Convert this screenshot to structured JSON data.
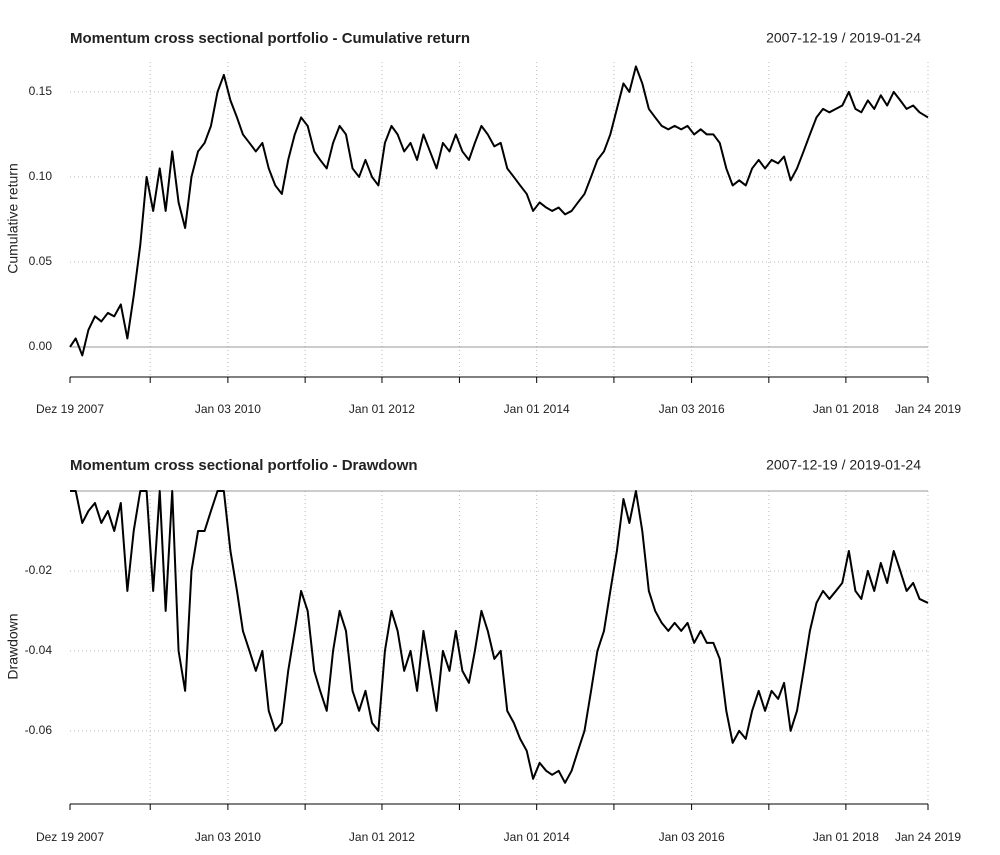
{
  "chart_data": [
    {
      "type": "line",
      "title": "Momentum cross sectional portfolio - Cumulative return",
      "date_range": "2007-12-19 / 2019-01-24",
      "ylabel": "Cumulative return",
      "color": "#000000",
      "grid": true,
      "baseline": 0,
      "x": [
        "2007-12-19",
        "2008-01-15",
        "2008-02-15",
        "2008-03-15",
        "2008-04-15",
        "2008-05-15",
        "2008-06-15",
        "2008-07-15",
        "2008-08-15",
        "2008-09-15",
        "2008-10-15",
        "2008-11-15",
        "2008-12-15",
        "2009-01-15",
        "2009-02-15",
        "2009-03-15",
        "2009-04-15",
        "2009-05-15",
        "2009-06-15",
        "2009-07-15",
        "2009-08-15",
        "2009-09-15",
        "2009-10-15",
        "2009-11-15",
        "2009-12-15",
        "2010-01-15",
        "2010-02-15",
        "2010-03-15",
        "2010-04-15",
        "2010-05-15",
        "2010-06-15",
        "2010-07-15",
        "2010-08-15",
        "2010-09-15",
        "2010-10-15",
        "2010-11-15",
        "2010-12-15",
        "2011-01-15",
        "2011-02-15",
        "2011-03-15",
        "2011-04-15",
        "2011-05-15",
        "2011-06-15",
        "2011-07-15",
        "2011-08-15",
        "2011-09-15",
        "2011-10-15",
        "2011-11-15",
        "2011-12-15",
        "2012-01-15",
        "2012-02-15",
        "2012-03-15",
        "2012-04-15",
        "2012-05-15",
        "2012-06-15",
        "2012-07-15",
        "2012-08-15",
        "2012-09-15",
        "2012-10-15",
        "2012-11-15",
        "2012-12-15",
        "2013-01-15",
        "2013-02-15",
        "2013-03-15",
        "2013-04-15",
        "2013-05-15",
        "2013-06-15",
        "2013-07-15",
        "2013-08-15",
        "2013-09-15",
        "2013-10-15",
        "2013-11-15",
        "2013-12-15",
        "2014-01-15",
        "2014-02-15",
        "2014-03-15",
        "2014-04-15",
        "2014-05-15",
        "2014-06-15",
        "2014-07-15",
        "2014-08-15",
        "2014-09-15",
        "2014-10-15",
        "2014-11-15",
        "2014-12-15",
        "2015-01-15",
        "2015-02-15",
        "2015-03-15",
        "2015-04-15",
        "2015-05-15",
        "2015-06-15",
        "2015-07-15",
        "2015-08-15",
        "2015-09-15",
        "2015-10-15",
        "2015-11-15",
        "2015-12-15",
        "2016-01-15",
        "2016-02-15",
        "2016-03-15",
        "2016-04-15",
        "2016-05-15",
        "2016-06-15",
        "2016-07-15",
        "2016-08-15",
        "2016-09-15",
        "2016-10-15",
        "2016-11-15",
        "2016-12-15",
        "2017-01-15",
        "2017-02-15",
        "2017-03-15",
        "2017-04-15",
        "2017-05-15",
        "2017-06-15",
        "2017-07-15",
        "2017-08-15",
        "2017-09-15",
        "2017-10-15",
        "2017-11-15",
        "2017-12-15",
        "2018-01-15",
        "2018-02-15",
        "2018-03-15",
        "2018-04-15",
        "2018-05-15",
        "2018-06-15",
        "2018-07-15",
        "2018-08-15",
        "2018-09-15",
        "2018-10-15",
        "2018-11-15",
        "2018-12-15",
        "2019-01-24"
      ],
      "values": [
        0.0,
        0.005,
        -0.005,
        0.01,
        0.018,
        0.015,
        0.02,
        0.018,
        0.025,
        0.005,
        0.03,
        0.06,
        0.1,
        0.08,
        0.105,
        0.08,
        0.115,
        0.085,
        0.07,
        0.1,
        0.115,
        0.12,
        0.13,
        0.15,
        0.16,
        0.145,
        0.135,
        0.125,
        0.12,
        0.115,
        0.12,
        0.105,
        0.095,
        0.09,
        0.11,
        0.125,
        0.135,
        0.13,
        0.115,
        0.11,
        0.105,
        0.12,
        0.13,
        0.125,
        0.105,
        0.1,
        0.11,
        0.1,
        0.095,
        0.12,
        0.13,
        0.125,
        0.115,
        0.12,
        0.11,
        0.125,
        0.115,
        0.105,
        0.12,
        0.115,
        0.125,
        0.115,
        0.11,
        0.12,
        0.13,
        0.125,
        0.118,
        0.12,
        0.105,
        0.1,
        0.095,
        0.09,
        0.08,
        0.085,
        0.082,
        0.08,
        0.082,
        0.078,
        0.08,
        0.085,
        0.09,
        0.1,
        0.11,
        0.115,
        0.125,
        0.14,
        0.155,
        0.15,
        0.165,
        0.155,
        0.14,
        0.135,
        0.13,
        0.128,
        0.13,
        0.128,
        0.13,
        0.125,
        0.128,
        0.125,
        0.125,
        0.12,
        0.105,
        0.095,
        0.098,
        0.095,
        0.105,
        0.11,
        0.105,
        0.11,
        0.108,
        0.112,
        0.098,
        0.105,
        0.115,
        0.125,
        0.135,
        0.14,
        0.138,
        0.14,
        0.142,
        0.15,
        0.14,
        0.138,
        0.145,
        0.14,
        0.148,
        0.142,
        0.15,
        0.145,
        0.14,
        0.142,
        0.138,
        0.135
      ],
      "xlim": [
        "2007-12-19",
        "2019-01-24"
      ],
      "xticks": [
        {
          "value": "2007-12-19",
          "label": "Dez 19 2007"
        },
        {
          "value": "2010-01-03",
          "label": "Jan 03 2010"
        },
        {
          "value": "2012-01-01",
          "label": "Jan 01 2012"
        },
        {
          "value": "2014-01-01",
          "label": "Jan 01 2014"
        },
        {
          "value": "2016-01-03",
          "label": "Jan 03 2016"
        },
        {
          "value": "2018-01-01",
          "label": "Jan 01 2018"
        },
        {
          "value": "2019-01-24",
          "label": "Jan 24 2019"
        }
      ],
      "xticks_minor": [
        "2009-01-01",
        "2011-01-03",
        "2013-01-01",
        "2015-01-01",
        "2017-01-02"
      ],
      "ylim": [
        -0.0165,
        0.1676
      ],
      "yticks": [
        {
          "value": 0,
          "label": "0.00"
        },
        0.05,
        {
          "value": 0.1,
          "label": "0.10"
        },
        0.15
      ]
    },
    {
      "type": "line",
      "title": "Momentum cross sectional portfolio - Drawdown",
      "date_range": "2007-12-19 / 2019-01-24",
      "ylabel": "Drawdown",
      "color": "#000000",
      "grid": true,
      "baseline": 0,
      "x": [
        "2007-12-19",
        "2008-01-15",
        "2008-02-15",
        "2008-03-15",
        "2008-04-15",
        "2008-05-15",
        "2008-06-15",
        "2008-07-15",
        "2008-08-15",
        "2008-09-15",
        "2008-10-15",
        "2008-11-15",
        "2008-12-15",
        "2009-01-15",
        "2009-02-15",
        "2009-03-15",
        "2009-04-15",
        "2009-05-15",
        "2009-06-15",
        "2009-07-15",
        "2009-08-15",
        "2009-09-15",
        "2009-10-15",
        "2009-11-15",
        "2009-12-15",
        "2010-01-15",
        "2010-02-15",
        "2010-03-15",
        "2010-04-15",
        "2010-05-15",
        "2010-06-15",
        "2010-07-15",
        "2010-08-15",
        "2010-09-15",
        "2010-10-15",
        "2010-11-15",
        "2010-12-15",
        "2011-01-15",
        "2011-02-15",
        "2011-03-15",
        "2011-04-15",
        "2011-05-15",
        "2011-06-15",
        "2011-07-15",
        "2011-08-15",
        "2011-09-15",
        "2011-10-15",
        "2011-11-15",
        "2011-12-15",
        "2012-01-15",
        "2012-02-15",
        "2012-03-15",
        "2012-04-15",
        "2012-05-15",
        "2012-06-15",
        "2012-07-15",
        "2012-08-15",
        "2012-09-15",
        "2012-10-15",
        "2012-11-15",
        "2012-12-15",
        "2013-01-15",
        "2013-02-15",
        "2013-03-15",
        "2013-04-15",
        "2013-05-15",
        "2013-06-15",
        "2013-07-15",
        "2013-08-15",
        "2013-09-15",
        "2013-10-15",
        "2013-11-15",
        "2013-12-15",
        "2014-01-15",
        "2014-02-15",
        "2014-03-15",
        "2014-04-15",
        "2014-05-15",
        "2014-06-15",
        "2014-07-15",
        "2014-08-15",
        "2014-09-15",
        "2014-10-15",
        "2014-11-15",
        "2014-12-15",
        "2015-01-15",
        "2015-02-15",
        "2015-03-15",
        "2015-04-15",
        "2015-05-15",
        "2015-06-15",
        "2015-07-15",
        "2015-08-15",
        "2015-09-15",
        "2015-10-15",
        "2015-11-15",
        "2015-12-15",
        "2016-01-15",
        "2016-02-15",
        "2016-03-15",
        "2016-04-15",
        "2016-05-15",
        "2016-06-15",
        "2016-07-15",
        "2016-08-15",
        "2016-09-15",
        "2016-10-15",
        "2016-11-15",
        "2016-12-15",
        "2017-01-15",
        "2017-02-15",
        "2017-03-15",
        "2017-04-15",
        "2017-05-15",
        "2017-06-15",
        "2017-07-15",
        "2017-08-15",
        "2017-09-15",
        "2017-10-15",
        "2017-11-15",
        "2017-12-15",
        "2018-01-15",
        "2018-02-15",
        "2018-03-15",
        "2018-04-15",
        "2018-05-15",
        "2018-06-15",
        "2018-07-15",
        "2018-08-15",
        "2018-09-15",
        "2018-10-15",
        "2018-11-15",
        "2018-12-15",
        "2019-01-24"
      ],
      "values": [
        0,
        0,
        -0.008,
        -0.005,
        -0.003,
        -0.008,
        -0.005,
        -0.01,
        -0.003,
        -0.025,
        -0.01,
        0,
        0,
        -0.025,
        0,
        -0.03,
        0,
        -0.04,
        -0.05,
        -0.02,
        -0.01,
        -0.01,
        -0.005,
        0,
        0,
        -0.015,
        -0.025,
        -0.035,
        -0.04,
        -0.045,
        -0.04,
        -0.055,
        -0.06,
        -0.058,
        -0.045,
        -0.035,
        -0.025,
        -0.03,
        -0.045,
        -0.05,
        -0.055,
        -0.04,
        -0.03,
        -0.035,
        -0.05,
        -0.055,
        -0.05,
        -0.058,
        -0.06,
        -0.04,
        -0.03,
        -0.035,
        -0.045,
        -0.04,
        -0.05,
        -0.035,
        -0.045,
        -0.055,
        -0.04,
        -0.045,
        -0.035,
        -0.045,
        -0.048,
        -0.04,
        -0.03,
        -0.035,
        -0.042,
        -0.04,
        -0.055,
        -0.058,
        -0.062,
        -0.065,
        -0.072,
        -0.068,
        -0.07,
        -0.071,
        -0.07,
        -0.073,
        -0.07,
        -0.065,
        -0.06,
        -0.05,
        -0.04,
        -0.035,
        -0.025,
        -0.015,
        -0.002,
        -0.008,
        0,
        -0.01,
        -0.025,
        -0.03,
        -0.033,
        -0.035,
        -0.033,
        -0.035,
        -0.033,
        -0.038,
        -0.035,
        -0.038,
        -0.038,
        -0.042,
        -0.055,
        -0.063,
        -0.06,
        -0.062,
        -0.055,
        -0.05,
        -0.055,
        -0.05,
        -0.052,
        -0.048,
        -0.06,
        -0.055,
        -0.045,
        -0.035,
        -0.028,
        -0.025,
        -0.027,
        -0.025,
        -0.023,
        -0.015,
        -0.025,
        -0.027,
        -0.02,
        -0.025,
        -0.018,
        -0.023,
        -0.015,
        -0.02,
        -0.025,
        -0.023,
        -0.027,
        -0.028
      ],
      "xlim": [
        "2007-12-19",
        "2019-01-24"
      ],
      "xticks": [
        {
          "value": "2007-12-19",
          "label": "Dez 19 2007"
        },
        {
          "value": "2010-01-03",
          "label": "Jan 03 2010"
        },
        {
          "value": "2012-01-01",
          "label": "Jan 01 2012"
        },
        {
          "value": "2014-01-01",
          "label": "Jan 01 2014"
        },
        {
          "value": "2016-01-03",
          "label": "Jan 03 2016"
        },
        {
          "value": "2018-01-01",
          "label": "Jan 01 2018"
        },
        {
          "value": "2019-01-24",
          "label": "Jan 24 2019"
        }
      ],
      "xticks_minor": [
        "2009-01-01",
        "2011-01-03",
        "2013-01-01",
        "2015-01-01",
        "2017-01-02"
      ],
      "ylim": [
        -0.0778,
        0
      ],
      "yticks": [
        -0.06,
        -0.04,
        -0.02
      ]
    }
  ]
}
